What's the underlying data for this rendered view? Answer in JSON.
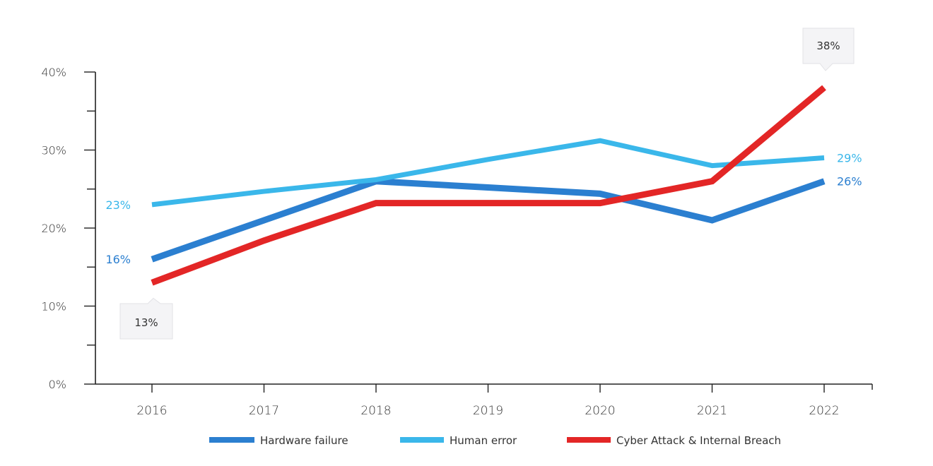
{
  "chart_data": {
    "type": "line",
    "title": "",
    "xlabel": "",
    "ylabel": "",
    "categories": [
      "2016",
      "2017",
      "2018",
      "2019",
      "2020",
      "2021",
      "2022"
    ],
    "ylim": [
      0,
      40
    ],
    "y_ticks": [
      "0%",
      "10%",
      "20%",
      "30%",
      "40%"
    ],
    "grid": false,
    "legend_position": "bottom",
    "series": [
      {
        "name": "Hardware failure",
        "color": "#2b7fd0",
        "values": [
          16,
          21,
          26,
          25.2,
          24.4,
          21,
          26
        ],
        "start_label": "16%",
        "end_label": "26%"
      },
      {
        "name": "Human error",
        "color": "#3ab7ea",
        "values": [
          23,
          24.7,
          26.2,
          28.8,
          31.2,
          28,
          29
        ],
        "start_label": "23%",
        "end_label": "29%"
      },
      {
        "name": "Cyber Attack & Internal Breach",
        "color": "#e32626",
        "values": [
          13,
          18.4,
          23.2,
          23.2,
          23.2,
          26,
          38
        ],
        "start_callout": "13%",
        "end_callout": "38%"
      }
    ]
  }
}
